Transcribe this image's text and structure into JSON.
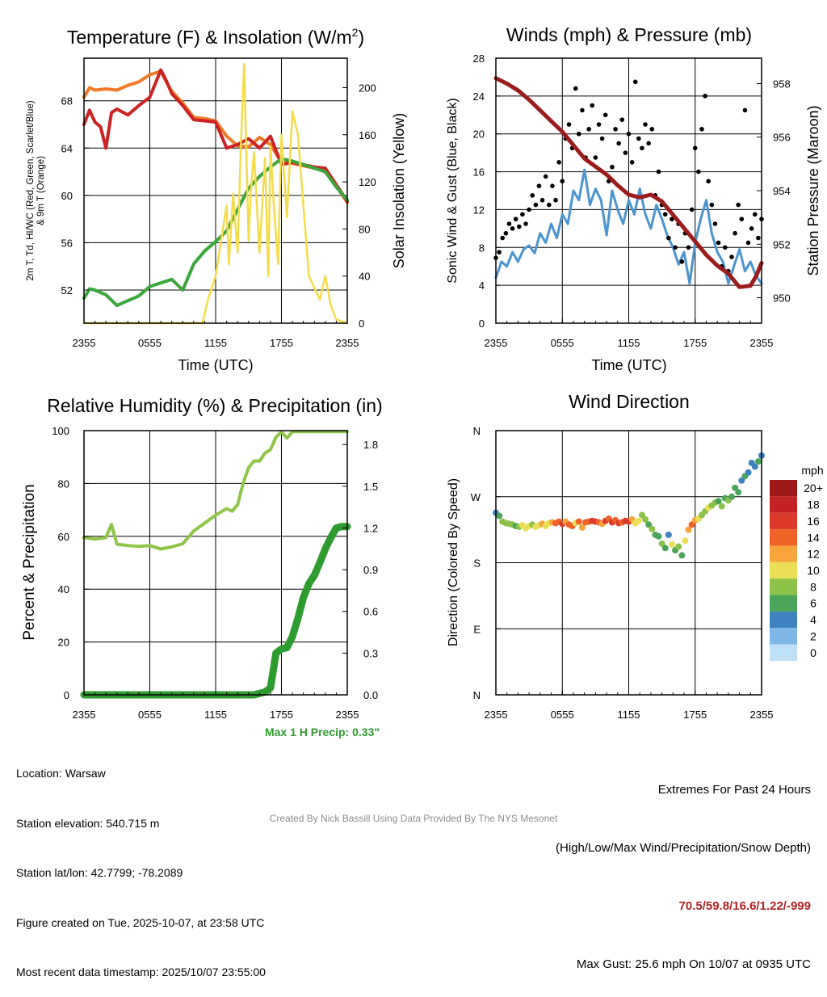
{
  "colors": {
    "red": "#cc2222",
    "orange": "#ef7a2a",
    "green": "#3ba63b",
    "yellow": "#f5dc4a",
    "lightgreen": "#8fc64a",
    "blue": "#4a95d0",
    "maroon": "#9b1c1c",
    "black": "#000000",
    "precip": "#2e9b2e"
  },
  "chart_data": [
    {
      "id": "temperature",
      "type": "line",
      "title": "Temperature (F) & Insolation (W/m²)",
      "title_main": "Temperature (F) & Insolation (W/m",
      "title_sup": "2",
      "title_end": ")",
      "xlabel": "Time (UTC)",
      "ylabel_line1": "2m T, Td, HI/WC (Red, Green, Scarlet/Blue)",
      "ylabel_line2": "& 9m T (Orange)",
      "ylabel_right": "Solar Insolation (Yellow)",
      "x_ticks": [
        "2355",
        "0555",
        "1155",
        "1755",
        "2355"
      ],
      "ylim": [
        49.2,
        71.6
      ],
      "y_ticks": [
        52,
        56,
        60,
        64,
        68
      ],
      "y2lim": [
        0,
        225
      ],
      "y2_ticks": [
        0,
        40,
        80,
        120,
        160,
        200
      ],
      "series": [
        {
          "name": "9m T",
          "color": "orange",
          "axis": "left",
          "x": [
            0,
            0.5,
            1,
            2,
            3,
            4,
            5,
            6,
            7,
            7.5,
            8,
            9,
            10,
            11,
            12,
            13,
            14,
            15,
            16,
            17,
            18,
            19,
            20,
            21,
            22,
            23,
            24
          ],
          "values": [
            68.3,
            69.1,
            68.9,
            69.0,
            68.9,
            69.3,
            69.6,
            70.2,
            70.5,
            69.6,
            68.8,
            67.8,
            66.6,
            66.5,
            66.3,
            65.0,
            64.2,
            64.1,
            64.9,
            64.3,
            62.8,
            62.7,
            62.5,
            62.3,
            62.2,
            60.8,
            59.4
          ]
        },
        {
          "name": "2m T",
          "color": "red",
          "axis": "left",
          "x": [
            0,
            0.5,
            1,
            1.5,
            2,
            2.5,
            3,
            4,
            5,
            6,
            7,
            7.5,
            8,
            9,
            10,
            11,
            12,
            13,
            14,
            15,
            16,
            17,
            18,
            19,
            20,
            21,
            22,
            23,
            24
          ],
          "values": [
            66.0,
            67.2,
            66.2,
            65.8,
            64.0,
            67.0,
            67.3,
            66.8,
            67.6,
            68.3,
            70.6,
            69.7,
            68.6,
            67.6,
            66.4,
            66.3,
            66.2,
            64.0,
            64.3,
            64.8,
            64.0,
            65.0,
            62.6,
            62.8,
            62.6,
            62.4,
            62.3,
            60.9,
            59.5
          ]
        },
        {
          "name": "Dewpoint",
          "color": "green",
          "axis": "left",
          "x": [
            0,
            0.5,
            1,
            2,
            3,
            4,
            5,
            6,
            7,
            8,
            9,
            10,
            11,
            12,
            13,
            14,
            15,
            16,
            17,
            18,
            19,
            20,
            21,
            22,
            23,
            24
          ],
          "values": [
            51.3,
            52.1,
            52.0,
            51.6,
            50.7,
            51.1,
            51.5,
            52.3,
            52.6,
            52.9,
            52.0,
            54.2,
            55.3,
            56.1,
            57.0,
            58.8,
            60.6,
            61.6,
            62.4,
            63.1,
            62.9,
            62.6,
            62.3,
            62.0,
            60.7,
            59.6
          ]
        },
        {
          "name": "Solar Insolation",
          "color": "yellow",
          "axis": "right",
          "x": [
            0,
            10.8,
            11.3,
            12,
            13,
            13.2,
            13.6,
            14,
            14.3,
            14.6,
            15,
            15.2,
            15.5,
            16,
            16.5,
            16.8,
            17,
            17.3,
            17.7,
            18,
            18.5,
            19,
            19.5,
            20,
            20.5,
            21,
            21.5,
            22,
            22.5,
            23,
            24
          ],
          "values": [
            0,
            0,
            20,
            40,
            100,
            50,
            110,
            60,
            150,
            220,
            70,
            110,
            145,
            60,
            140,
            40,
            150,
            100,
            50,
            160,
            90,
            180,
            160,
            100,
            40,
            30,
            20,
            40,
            15,
            3,
            0
          ]
        }
      ]
    },
    {
      "id": "winds",
      "type": "line",
      "title": "Winds (mph) & Pressure (mb)",
      "xlabel": "Time (UTC)",
      "ylabel": "Sonic Wind & Gust (Blue, Black)",
      "ylabel_right": "Station Pressure (Maroon)",
      "x_ticks": [
        "2355",
        "0555",
        "1155",
        "1755",
        "2355"
      ],
      "ylim": [
        0,
        28
      ],
      "y_ticks": [
        0,
        4,
        8,
        12,
        16,
        20,
        24,
        28
      ],
      "y2lim": [
        949.05,
        958.95
      ],
      "y2_ticks": [
        950,
        952,
        954,
        956,
        958
      ],
      "series": [
        {
          "name": "Sonic Wind",
          "color": "blue",
          "axis": "left",
          "x": [
            0,
            0.5,
            1,
            1.5,
            2,
            2.5,
            3,
            3.5,
            4,
            4.5,
            5,
            5.5,
            6,
            6.5,
            7,
            7.5,
            8,
            8.5,
            9,
            9.5,
            10,
            10.5,
            11,
            11.5,
            12,
            12.5,
            13,
            13.5,
            14,
            14.5,
            15,
            15.5,
            16,
            16.5,
            17,
            17.5,
            18,
            18.5,
            19,
            19.5,
            20,
            20.5,
            21,
            21.5,
            22,
            22.5,
            23,
            23.5,
            24
          ],
          "values": [
            4.8,
            6.5,
            6.0,
            7.5,
            6.5,
            7.8,
            8.2,
            7.4,
            9.5,
            8.5,
            10.5,
            9.0,
            11.5,
            10.5,
            14.0,
            13.0,
            16.2,
            12.5,
            14.2,
            13.0,
            9.3,
            14.0,
            12.0,
            10.5,
            13.0,
            11.5,
            14.2,
            11.5,
            10.0,
            12.5,
            11.0,
            9.2,
            8.0,
            6.2,
            7.5,
            4.2,
            8.5,
            11.0,
            13.0,
            9.5,
            7.5,
            6.5,
            4.2,
            6.0,
            7.8,
            5.5,
            6.5,
            5.0,
            4.2
          ]
        },
        {
          "name": "Gust",
          "color": "black",
          "axis": "left",
          "style": "dots",
          "x": [
            0,
            0.3,
            0.6,
            0.9,
            1.2,
            1.5,
            1.8,
            2.1,
            2.4,
            2.7,
            3,
            3.3,
            3.6,
            3.9,
            4.2,
            4.5,
            4.8,
            5.1,
            5.4,
            5.7,
            6,
            6.3,
            6.6,
            6.9,
            7.2,
            7.5,
            7.8,
            8.1,
            8.4,
            8.7,
            9,
            9.3,
            9.6,
            9.9,
            10.2,
            10.5,
            10.8,
            11.1,
            11.4,
            11.7,
            12,
            12.3,
            12.6,
            12.9,
            13.2,
            13.5,
            13.8,
            14.1,
            14.4,
            14.7,
            15,
            15.3,
            15.6,
            15.9,
            16.2,
            16.5,
            16.8,
            17.1,
            17.4,
            17.7,
            18,
            18.3,
            18.6,
            18.9,
            19.2,
            19.5,
            19.8,
            20.1,
            20.4,
            20.7,
            21,
            21.3,
            21.6,
            21.9,
            22.2,
            22.5,
            22.8,
            23.1,
            23.4,
            23.7,
            24
          ],
          "values": [
            6.9,
            7.5,
            9.0,
            9.5,
            10.5,
            10.0,
            11.0,
            10.2,
            11.5,
            10.5,
            12.0,
            13.5,
            12.5,
            14.5,
            13.0,
            15.5,
            12.5,
            14.5,
            13.0,
            17.0,
            15.0,
            19.5,
            21.0,
            18.5,
            24.8,
            20.0,
            22.5,
            17.5,
            20.5,
            23.0,
            17.5,
            21.0,
            19.5,
            22.0,
            15.0,
            16.5,
            20.5,
            19.0,
            21.5,
            18.0,
            20.0,
            17.0,
            25.5,
            19.5,
            18.5,
            21.0,
            19.0,
            20.5,
            13.5,
            16.0,
            12.5,
            11.5,
            9.0,
            11.0,
            8.0,
            10.5,
            6.5,
            9.5,
            8.0,
            12.0,
            18.5,
            16.0,
            20.5,
            24.0,
            15.0,
            12.5,
            10.5,
            8.5,
            6.0,
            8.0,
            5.5,
            7.0,
            9.5,
            12.5,
            11.0,
            22.5,
            8.5,
            10.0,
            11.5,
            9.0,
            11.0
          ]
        },
        {
          "name": "Station Pressure",
          "color": "maroon",
          "axis": "right",
          "x": [
            0,
            1,
            2,
            3,
            4,
            5,
            6,
            7,
            8,
            9,
            10,
            11,
            12,
            13,
            14,
            15,
            16,
            17,
            18,
            19,
            20,
            21,
            22,
            23,
            23.5,
            24
          ],
          "values": [
            958.2,
            958.0,
            957.75,
            957.4,
            957.0,
            956.6,
            956.2,
            955.7,
            955.2,
            954.9,
            954.6,
            954.2,
            953.85,
            953.75,
            953.85,
            953.6,
            953.1,
            952.6,
            952.1,
            951.6,
            951.2,
            950.9,
            950.4,
            950.45,
            950.8,
            951.3
          ]
        }
      ]
    },
    {
      "id": "humidity",
      "type": "line",
      "title": "Relative Humidity (%) & Precipitation (in)",
      "ylabel": "Percent & Precipitation",
      "x_ticks": [
        "2355",
        "0555",
        "1155",
        "1755",
        "2355"
      ],
      "ylim": [
        0,
        100
      ],
      "y_ticks": [
        0,
        20,
        40,
        60,
        80,
        100
      ],
      "y2lim": [
        0,
        1.9
      ],
      "y2_ticks": [
        "0.0",
        "0.3",
        "0.6",
        "0.9",
        "1.2",
        "1.5",
        "1.8"
      ],
      "note": "Max 1 H Precip: 0.33\"",
      "series": [
        {
          "name": "Relative Humidity",
          "color": "lightgreen",
          "axis": "left",
          "x": [
            0,
            1,
            2,
            2.5,
            3,
            4,
            5,
            6,
            7,
            8,
            9,
            10,
            11,
            12,
            13,
            13.5,
            14,
            14.5,
            15,
            15.5,
            16,
            16.5,
            17,
            17.5,
            18,
            18.5,
            19,
            20,
            21,
            22,
            23,
            24
          ],
          "values": [
            59.5,
            59,
            59.5,
            64.5,
            57,
            56.5,
            56.2,
            56.5,
            55.2,
            56,
            57.2,
            62,
            65,
            68,
            70.5,
            69.5,
            72,
            80,
            86,
            88.5,
            88.5,
            91.5,
            92.8,
            97.5,
            99.5,
            97.2,
            99.6,
            99.6,
            99.6,
            99.6,
            99.6,
            99.6
          ]
        },
        {
          "name": "Precipitation",
          "color": "precip",
          "axis": "right",
          "x": [
            0,
            13,
            15.5,
            16,
            16.5,
            17,
            17.5,
            18,
            18.5,
            19,
            19.5,
            20,
            20.5,
            21,
            21.5,
            22,
            22.5,
            23,
            23.5,
            24
          ],
          "values": [
            0,
            0,
            0,
            0.01,
            0.02,
            0.05,
            0.3,
            0.33,
            0.34,
            0.42,
            0.55,
            0.7,
            0.8,
            0.86,
            0.95,
            1.05,
            1.13,
            1.2,
            1.21,
            1.21
          ]
        }
      ]
    },
    {
      "id": "direction",
      "type": "scatter",
      "title": "Wind Direction",
      "ylabel": "Direction (Colored By Speed)",
      "x_ticks": [
        "2355",
        "0555",
        "1155",
        "1755",
        "2355"
      ],
      "y_ticks": [
        "N",
        "E",
        "S",
        "W",
        "N"
      ],
      "ylim": [
        0,
        360
      ],
      "colorbar_title": "mph",
      "colorbar_labels": [
        "20+",
        "18",
        "16",
        "14",
        "12",
        "10",
        "8",
        "6",
        "4",
        "2",
        "0"
      ],
      "colorbar_colors": [
        "#9e1a1a",
        "#c42326",
        "#dc3b2b",
        "#ef6329",
        "#f6a43b",
        "#e9de55",
        "#8cc24a",
        "#4aa55a",
        "#3f82c0",
        "#7fb8e6",
        "#bfe1f7"
      ],
      "x": [
        0,
        0.3,
        0.6,
        0.9,
        1.2,
        1.5,
        1.8,
        2.1,
        2.4,
        2.7,
        3,
        3.3,
        3.6,
        3.9,
        4.2,
        4.5,
        4.8,
        5.1,
        5.4,
        5.7,
        6,
        6.3,
        6.6,
        6.9,
        7.2,
        7.5,
        7.8,
        8.1,
        8.4,
        8.7,
        9,
        9.3,
        9.6,
        9.9,
        10.2,
        10.5,
        10.8,
        11.1,
        11.4,
        11.7,
        12,
        12.3,
        12.6,
        12.9,
        13.2,
        13.5,
        13.8,
        14.1,
        14.4,
        14.7,
        15,
        15.3,
        15.6,
        15.9,
        16.2,
        16.5,
        16.8,
        17.1,
        17.4,
        17.7,
        18,
        18.3,
        18.6,
        18.9,
        19.2,
        19.5,
        19.8,
        20.1,
        20.4,
        20.7,
        21,
        21.3,
        21.6,
        21.9,
        22.2,
        22.5,
        22.8,
        23.1,
        23.4,
        23.7,
        24
      ],
      "values": [
        248,
        244,
        236,
        234,
        233,
        232,
        230,
        229,
        231,
        227,
        230,
        232,
        229,
        231,
        233,
        230,
        234,
        235,
        234,
        236,
        233,
        236,
        232,
        230,
        234,
        236,
        228,
        235,
        236,
        237,
        236,
        235,
        233,
        237,
        240,
        235,
        238,
        234,
        235,
        237,
        236,
        239,
        234,
        237,
        245,
        239,
        232,
        226,
        218,
        216,
        206,
        200,
        218,
        205,
        197,
        202,
        190,
        210,
        225,
        232,
        238,
        240,
        245,
        250,
        255,
        258,
        262,
        264,
        257,
        268,
        265,
        270,
        282,
        276,
        292,
        298,
        303,
        316,
        311,
        318,
        326
      ],
      "speeds": [
        4,
        5,
        7,
        7,
        8,
        7,
        6,
        8,
        9,
        10,
        9,
        8,
        10,
        9,
        11,
        10,
        10,
        12,
        13,
        14,
        15,
        12,
        14,
        13,
        10,
        14,
        11,
        13,
        14,
        15,
        16,
        14,
        12,
        15,
        14,
        15,
        13,
        16,
        14,
        15,
        15,
        12,
        10,
        9,
        8,
        7,
        6,
        7,
        5,
        6,
        7,
        5,
        4,
        9,
        6,
        8,
        5,
        10,
        11,
        13,
        11,
        9,
        8,
        8,
        9,
        8,
        7,
        6,
        8,
        6,
        7,
        5,
        6,
        5,
        4,
        5,
        3,
        4,
        4,
        5,
        4
      ]
    }
  ],
  "info": {
    "location": "Location: Warsaw",
    "elevation": "Station elevation: 540.715 m",
    "latlon": "Station lat/lon: 42.7799; -78.2089",
    "created": "Figure created on Tue, 2025-10-07, at 23:58 UTC",
    "recent": "Most recent data timestamp: 2025/10/07 23:55:00"
  },
  "extremes": {
    "title": "Extremes For Past 24 Hours",
    "subtitle": "(High/Low/Max Wind/Precipitation/Snow Depth)",
    "values": "70.5/59.8/16.6/1.22/-999",
    "gust": "Max Gust: 25.6 mph On 10/07 at 0935 UTC"
  },
  "credit": "Created By Nick Bassill Using Data Provided By The NYS Mesonet"
}
